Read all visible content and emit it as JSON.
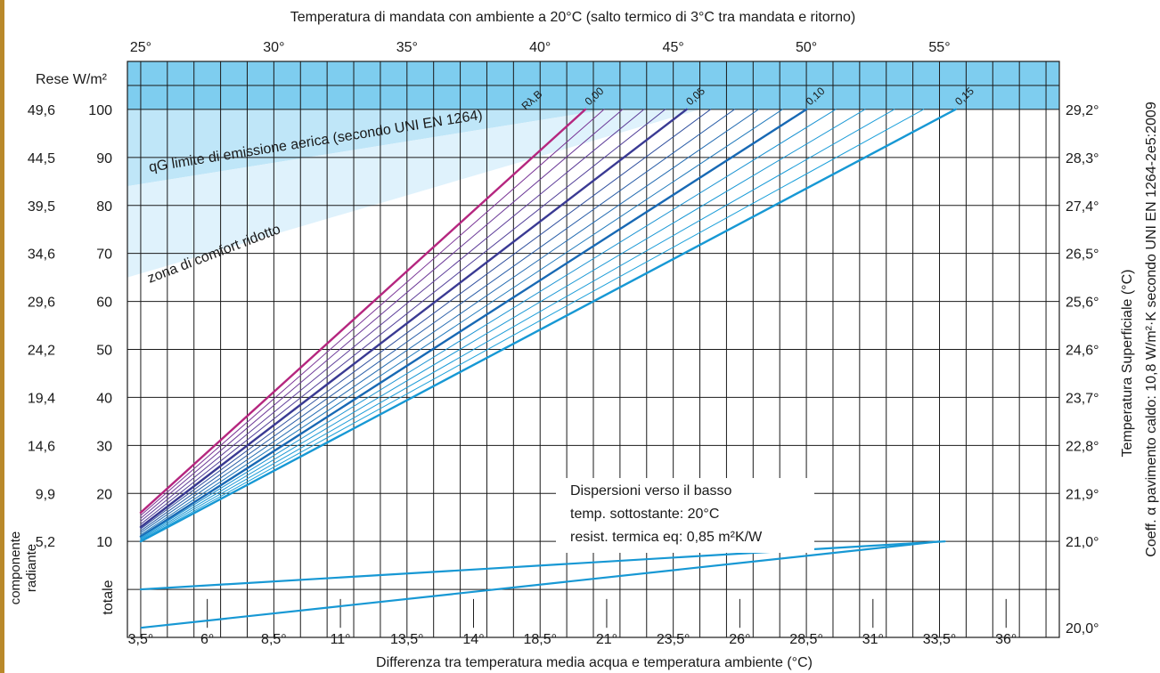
{
  "chart_data": {
    "type": "line",
    "top_axis": {
      "title": "Temperatura di mandata con ambiente a 20°C   (salto termico di 3°C tra mandata e ritorno)",
      "ticks": [
        "25°",
        "30°",
        "35°",
        "40°",
        "45°",
        "50°",
        "55°"
      ],
      "tick_positions_deltaT": [
        3.5,
        8.5,
        13.5,
        18.5,
        23.5,
        28.5,
        33.5
      ]
    },
    "bottom_axis": {
      "title": "Differenza tra temperatura media acqua e temperatura ambiente (°C)",
      "ticks": [
        "3,5°",
        "6°",
        "8,5°",
        "11°",
        "13,5°",
        "14°",
        "18,5°",
        "21°",
        "23,5°",
        "26°",
        "28,5°",
        "31°",
        "33,5°",
        "36°"
      ],
      "range": [
        3,
        38
      ]
    },
    "left_axis": {
      "header": "Rese W/m²",
      "ticks": [
        "100",
        "90",
        "80",
        "70",
        "60",
        "50",
        "40",
        "30",
        "20",
        "10"
      ],
      "radiant_values": [
        "49,6",
        "44,5",
        "39,5",
        "34,6",
        "29,6",
        "24,2",
        "19,4",
        "14,6",
        "9,9",
        "5,2"
      ],
      "radiant_label": "componente radiante",
      "total_label": "totale",
      "range": [
        -10,
        110
      ]
    },
    "right_axis": {
      "title": "Temperatura Superficiale (°C)",
      "outer_title": "Coeff. α pavimento caldo: 10,8 W/m²·K secondo UNI EN 1264-2e5:2009",
      "ticks": [
        "29,2°",
        "28,3°",
        "27,4°",
        "26,5°",
        "25,6°",
        "24,6°",
        "23,7°",
        "22,8°",
        "21,9°",
        "21,0°",
        "20,0°"
      ]
    },
    "resistance_label": "Rλ,B",
    "series": [
      {
        "name": "0,00",
        "x": [
          3.5,
          20.2
        ],
        "y": [
          16,
          100
        ],
        "color": "#b5267f",
        "width": 2.4
      },
      {
        "name": "",
        "x": [
          3.5,
          20.9
        ],
        "y": [
          15.4,
          100
        ],
        "color": "#7a3596",
        "width": 1.0
      },
      {
        "name": "",
        "x": [
          3.5,
          21.6
        ],
        "y": [
          14.8,
          100
        ],
        "color": "#6d3a98",
        "width": 1.0
      },
      {
        "name": "",
        "x": [
          3.5,
          22.4
        ],
        "y": [
          14.2,
          100
        ],
        "color": "#5e3d99",
        "width": 1.0
      },
      {
        "name": "",
        "x": [
          3.5,
          23.2
        ],
        "y": [
          13.6,
          100
        ],
        "color": "#503e98",
        "width": 1.0
      },
      {
        "name": "0,05",
        "x": [
          3.5,
          24.0
        ],
        "y": [
          13.0,
          100
        ],
        "color": "#3a3a93",
        "width": 2.4
      },
      {
        "name": "",
        "x": [
          3.5,
          24.9
        ],
        "y": [
          12.6,
          100
        ],
        "color": "#304f9e",
        "width": 1.0
      },
      {
        "name": "",
        "x": [
          3.5,
          25.8
        ],
        "y": [
          12.2,
          100
        ],
        "color": "#2a5ea8",
        "width": 1.0
      },
      {
        "name": "",
        "x": [
          3.5,
          26.7
        ],
        "y": [
          11.8,
          100
        ],
        "color": "#246cb2",
        "width": 1.0
      },
      {
        "name": "",
        "x": [
          3.5,
          27.6
        ],
        "y": [
          11.4,
          100
        ],
        "color": "#1f79bb",
        "width": 1.0
      },
      {
        "name": "0,10",
        "x": [
          3.5,
          28.5
        ],
        "y": [
          11.0,
          100
        ],
        "color": "#1869b4",
        "width": 2.4
      },
      {
        "name": "",
        "x": [
          3.5,
          29.6
        ],
        "y": [
          10.8,
          100
        ],
        "color": "#1b93d2",
        "width": 1.0
      },
      {
        "name": "",
        "x": [
          3.5,
          30.7
        ],
        "y": [
          10.6,
          100
        ],
        "color": "#1b98d5",
        "width": 1.0
      },
      {
        "name": "",
        "x": [
          3.5,
          31.8
        ],
        "y": [
          10.4,
          100
        ],
        "color": "#1c9cd8",
        "width": 1.0
      },
      {
        "name": "",
        "x": [
          3.5,
          32.9
        ],
        "y": [
          10.2,
          100
        ],
        "color": "#1ca0da",
        "width": 1.0
      },
      {
        "name": "0,15",
        "x": [
          3.5,
          34.1
        ],
        "y": [
          10.0,
          100
        ],
        "color": "#1798d4",
        "width": 2.4
      },
      {
        "name": "",
        "x": [
          3.5,
          33.7
        ],
        "y": [
          0,
          10
        ],
        "color": "#1798d4",
        "width": 2.2
      }
    ],
    "zone_labels": {
      "emission_limit": "qG limite di emissione aerica (secondo UNI EN 1264)",
      "comfort": "zona di comfort ridotto"
    },
    "legend_lines": [
      "Dispersioni verso il basso",
      "temp. sottostante: 20°C",
      "resist. termica eq: 0,85 m²K/W"
    ],
    "colors": {
      "header_band": "#7ecdef",
      "limit_zone": "#bfe6f8",
      "comfort_zone": "#dff2fc",
      "grid": "#1a1a1a",
      "left_strip": "#b9892a"
    },
    "grid": true
  }
}
